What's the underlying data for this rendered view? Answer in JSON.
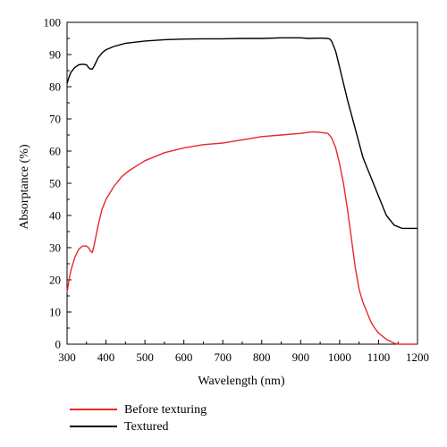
{
  "chart_data": {
    "type": "line",
    "xlabel": "Wavelength (nm)",
    "ylabel": "Absorptance (%)",
    "xlim": [
      300,
      1200
    ],
    "ylim": [
      0,
      100
    ],
    "x_ticks": [
      300,
      400,
      500,
      600,
      700,
      800,
      900,
      1000,
      1100,
      1200
    ],
    "y_ticks": [
      0,
      10,
      20,
      30,
      40,
      50,
      60,
      70,
      80,
      90,
      100
    ],
    "grid": false,
    "legend_position": "bottom-left, below plot",
    "series": [
      {
        "name": "Before texturing",
        "color": "#e8282b",
        "x": [
          300,
          305,
          310,
          320,
          330,
          340,
          350,
          355,
          360,
          365,
          370,
          380,
          390,
          400,
          420,
          440,
          460,
          480,
          500,
          550,
          600,
          650,
          700,
          750,
          800,
          850,
          900,
          930,
          950,
          970,
          980,
          990,
          1000,
          1010,
          1020,
          1030,
          1040,
          1050,
          1060,
          1070,
          1080,
          1090,
          1100,
          1120,
          1140,
          1150,
          1160,
          1180,
          1200
        ],
        "values": [
          16,
          20,
          23,
          27,
          29.5,
          30.5,
          30.5,
          30,
          29,
          28.5,
          31,
          37,
          42,
          45,
          49,
          52,
          54,
          55.5,
          57,
          59.5,
          61,
          62,
          62.5,
          63.5,
          64.5,
          65,
          65.5,
          66,
          65.8,
          65.5,
          64,
          61,
          56,
          50,
          42,
          33,
          24,
          17,
          13,
          10,
          7,
          5,
          3.5,
          1.5,
          0.3,
          0,
          0,
          0,
          0
        ]
      },
      {
        "name": "Textured",
        "color": "#000000",
        "x": [
          300,
          305,
          310,
          320,
          330,
          340,
          350,
          355,
          360,
          365,
          370,
          380,
          390,
          400,
          420,
          450,
          500,
          550,
          600,
          650,
          700,
          750,
          800,
          850,
          900,
          920,
          950,
          970,
          975,
          980,
          990,
          1000,
          1020,
          1040,
          1060,
          1080,
          1100,
          1120,
          1140,
          1160,
          1170,
          1180,
          1190,
          1200
        ],
        "values": [
          81,
          83,
          84.5,
          86,
          86.8,
          87,
          86.8,
          86,
          85.5,
          85.5,
          86.5,
          89,
          90.5,
          91.5,
          92.5,
          93.5,
          94.2,
          94.6,
          94.8,
          94.9,
          94.9,
          95,
          95,
          95.2,
          95.2,
          95,
          95.1,
          95,
          94.8,
          94,
          91,
          86,
          76,
          67,
          58,
          52,
          46,
          40,
          37,
          36,
          36,
          36,
          36,
          36
        ]
      }
    ]
  }
}
